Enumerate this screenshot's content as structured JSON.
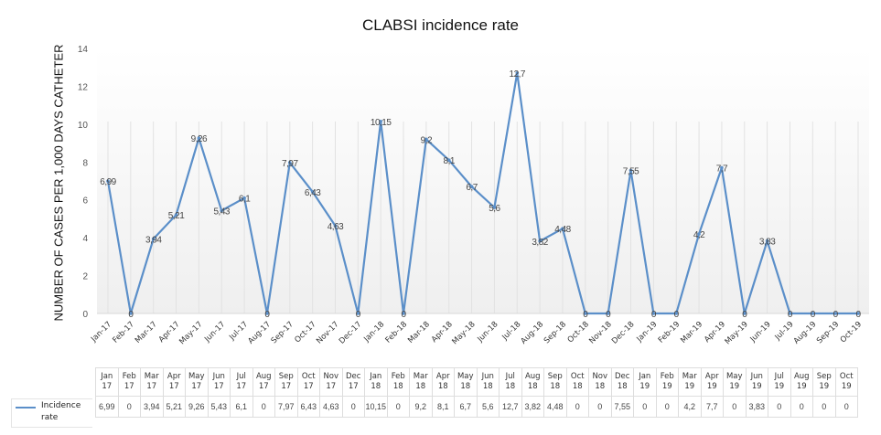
{
  "chart_data": {
    "type": "line",
    "title": "CLABSI incidence rate",
    "xlabel": "",
    "ylabel": "NUMBER OF CASES PER 1,000 DAYS CATHETER",
    "ylim": [
      0,
      14
    ],
    "yticks": [
      0,
      2,
      4,
      6,
      8,
      10,
      12,
      14
    ],
    "grid": "vertical",
    "legend": "bottom-left (data table)",
    "line_color": "#5b8fc9",
    "categories": [
      "Jan-17",
      "Feb-17",
      "Mar-17",
      "Apr-17",
      "May-17",
      "Jun-17",
      "Jul-17",
      "Aug-17",
      "Sep-17",
      "Oct-17",
      "Nov-17",
      "Dec-17",
      "Jan-18",
      "Feb-18",
      "Mar-18",
      "Apr-18",
      "May-18",
      "Jun-18",
      "Jul-18",
      "Aug-18",
      "Sep-18",
      "Oct-18",
      "Nov-18",
      "Dec-18",
      "Jan-19",
      "Feb-19",
      "Mar-19",
      "Apr-19",
      "May-19",
      "Jun-19",
      "Jul-19",
      "Aug-19",
      "Sep-19",
      "Oct-19"
    ],
    "series": [
      {
        "name": "Incidence rate",
        "values": [
          6.99,
          0,
          3.94,
          5.21,
          9.26,
          5.43,
          6.1,
          0,
          7.97,
          6.43,
          4.63,
          0,
          10.15,
          0,
          9.2,
          8.1,
          6.7,
          5.6,
          12.7,
          3.82,
          4.48,
          0,
          0,
          7.55,
          0,
          0,
          4.2,
          7.7,
          0,
          3.83,
          0,
          0,
          0,
          0
        ],
        "labels": [
          "6,99",
          "0",
          "3,94",
          "5,21",
          "9,26",
          "5,43",
          "6,1",
          "0",
          "7,97",
          "6,43",
          "4,63",
          "0",
          "10,15",
          "0",
          "9,2",
          "8,1",
          "6,7",
          "5,6",
          "12,7",
          "3,82",
          "4,48",
          "0",
          "0",
          "7,55",
          "0",
          "0",
          "4,2",
          "7,7",
          "0",
          "3,83",
          "0",
          "0",
          "0",
          "0"
        ]
      }
    ],
    "table": {
      "header_months": [
        "Jan",
        "Feb",
        "Mar",
        "Apr",
        "May",
        "Jun",
        "Jul",
        "Aug",
        "Sep",
        "Oct",
        "Nov",
        "Dec",
        "Jan",
        "Feb",
        "Mar",
        "Apr",
        "May",
        "Jun",
        "Jul",
        "Aug",
        "Sep",
        "Oct",
        "Nov",
        "Dec",
        "Jan",
        "Feb",
        "Mar",
        "Apr",
        "May",
        "Jun",
        "Jul",
        "Aug",
        "Sep",
        "Oct"
      ],
      "header_years": [
        "17",
        "17",
        "17",
        "17",
        "17",
        "17",
        "17",
        "17",
        "17",
        "17",
        "17",
        "17",
        "18",
        "18",
        "18",
        "18",
        "18",
        "18",
        "18",
        "18",
        "18",
        "18",
        "18",
        "18",
        "19",
        "19",
        "19",
        "19",
        "19",
        "19",
        "19",
        "19",
        "19",
        "19"
      ],
      "row_label": "Incidence rate"
    }
  }
}
